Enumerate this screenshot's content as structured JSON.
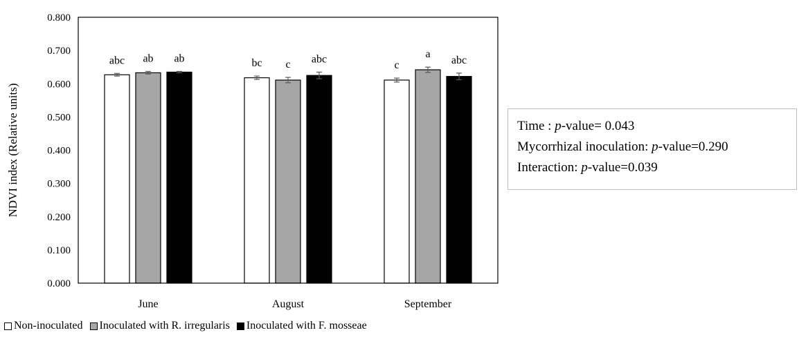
{
  "chart_data": {
    "type": "bar",
    "ylabel": "NDVI index (Relative units)",
    "ylim": [
      0,
      0.8
    ],
    "yticks": [
      "0.000",
      "0.100",
      "0.200",
      "0.300",
      "0.400",
      "0.500",
      "0.600",
      "0.700",
      "0.800"
    ],
    "grid": false,
    "legend_position": "bottom",
    "categories": [
      "June",
      "August",
      "September"
    ],
    "series": [
      {
        "name": "Non-inoculated",
        "color": "#ffffff",
        "values": [
          0.627,
          0.618,
          0.611
        ],
        "errors": [
          0.004,
          0.005,
          0.006
        ],
        "letters": [
          "abc",
          "bc",
          "c"
        ]
      },
      {
        "name": "Inoculated with R. irregularis",
        "color": "#a6a6a6",
        "values": [
          0.633,
          0.611,
          0.642
        ],
        "errors": [
          0.004,
          0.008,
          0.008
        ],
        "letters": [
          "ab",
          "c",
          "a"
        ]
      },
      {
        "name": "Inoculated with F. mosseae",
        "color": "#000000",
        "values": [
          0.635,
          0.625,
          0.622
        ],
        "errors": [
          0.002,
          0.01,
          0.01
        ],
        "letters": [
          "ab",
          "abc",
          "abc"
        ]
      }
    ]
  },
  "stats": {
    "time_label": "Time : ",
    "time_value": "-value= 0.043",
    "myco_label": "Mycorrhizal inoculation: ",
    "myco_value": "-value=0.290",
    "inter_label": "Interaction: ",
    "inter_value": "-value=0.039",
    "p": "p"
  }
}
